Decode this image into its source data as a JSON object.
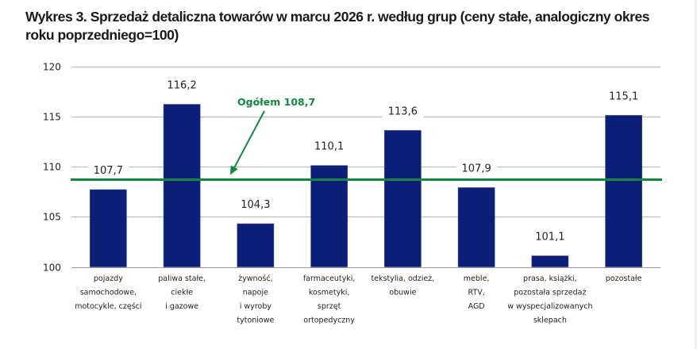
{
  "chart_data": {
    "type": "bar",
    "title": "Wykres 3. Sprzedaż detaliczna towarów w marcu 2026 r. według grup (ceny stałe, analogiczny okres roku poprzedniego=100)",
    "xlabel": "",
    "ylabel": "",
    "ylim": [
      100,
      120
    ],
    "yticks": [
      100,
      105,
      110,
      115,
      120
    ],
    "grid": true,
    "categories": [
      [
        "pojazdy",
        "samochodowe,",
        "motocykle,  części"
      ],
      [
        "paliwa stałe,",
        "ciekłe",
        "i gazowe"
      ],
      [
        "żywność,",
        "napoje",
        "i wyroby",
        "tytoniowe"
      ],
      [
        "farmaceutyki,",
        "kosmetyki,",
        "sprzęt",
        "ortopedyczny"
      ],
      [
        "tekstylia, odzież,",
        "obuwie"
      ],
      [
        "meble,",
        "RTV,",
        "AGD"
      ],
      [
        "prasa, książki,",
        "pozostała sprzedaż",
        "w wyspecjalizowanych",
        "sklepach"
      ],
      [
        "pozostałe"
      ]
    ],
    "values": [
      107.7,
      116.2,
      104.3,
      110.1,
      113.6,
      107.9,
      101.1,
      115.1
    ],
    "value_labels": [
      "107,7",
      "116,2",
      "104,3",
      "110,1",
      "113,6",
      "107,9",
      "101,1",
      "115,1"
    ],
    "reference_line": {
      "value": 108.7,
      "label": "Ogółem 108,7",
      "color": "#0e8a3e"
    },
    "bar_color": "#0b1f78",
    "legend": "none"
  }
}
